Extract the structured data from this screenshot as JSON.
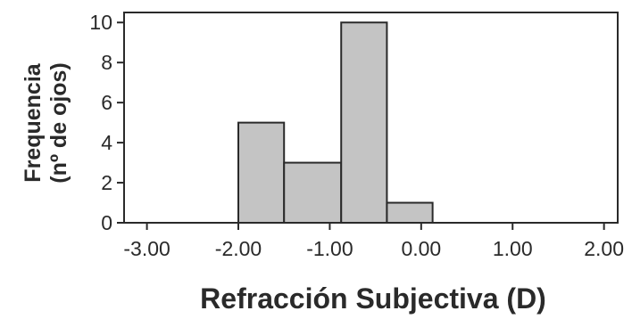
{
  "chart_data": {
    "type": "bar",
    "title": "",
    "xlabel": "Refracción Subjectiva (D)",
    "ylabel_lines": [
      "Frequencia",
      "(nº de ojos)"
    ],
    "xlim": [
      -3.25,
      2.15
    ],
    "ylim": [
      0,
      10.5
    ],
    "x_ticks": [
      -3.0,
      -2.0,
      -1.0,
      0.0,
      1.0,
      2.0
    ],
    "x_tick_labels": [
      "-3.00",
      "-2.00",
      "-1.00",
      "0.00",
      "1.00",
      "2.00"
    ],
    "y_ticks": [
      0,
      2,
      4,
      6,
      8,
      10
    ],
    "y_tick_labels": [
      "0",
      "2",
      "4",
      "6",
      "8",
      "10"
    ],
    "bins": [
      {
        "x0": -2.0,
        "x1": -1.5,
        "value": 5
      },
      {
        "x0": -1.5,
        "x1": -0.875,
        "value": 3
      },
      {
        "x0": -0.875,
        "x1": -0.375,
        "value": 10
      },
      {
        "x0": -0.375,
        "x1": 0.125,
        "value": 1
      }
    ],
    "grid": false,
    "bar_color": "#c4c4c4",
    "edge_color": "#2a2a2a"
  }
}
